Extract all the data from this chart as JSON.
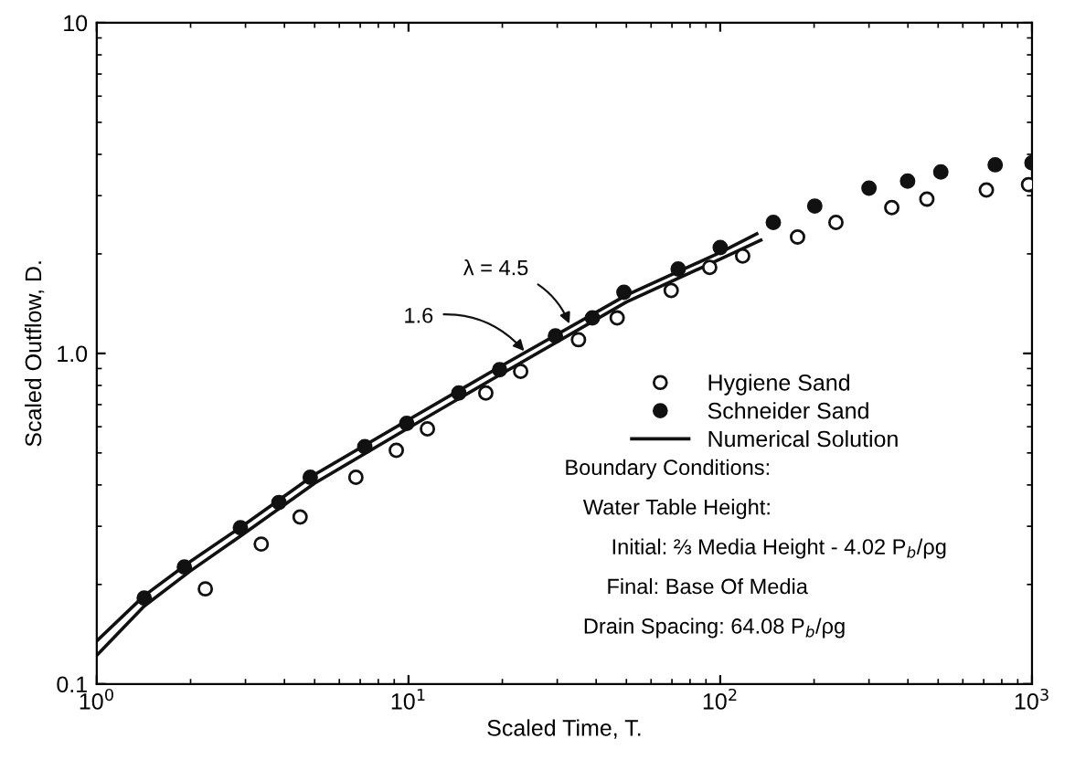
{
  "chart_data": {
    "type": "scatter",
    "xlabel": "Scaled Time, T.",
    "ylabel": "Scaled Outflow, D.",
    "log": "xy",
    "grid": false,
    "legend": "right",
    "xlim": [
      1,
      1000
    ],
    "xticks": [
      {
        "value": 1,
        "label": "10$^{0}$"
      },
      {
        "value": 10,
        "label": "10$^{1}$"
      },
      {
        "value": 100,
        "label": "10$^{2}$"
      },
      {
        "value": 1000,
        "label": "10$^{3}$"
      }
    ],
    "ylim": [
      0.1,
      10
    ],
    "yticks": [
      0.1,
      {
        "value": 1,
        "label": "1.0"
      },
      10
    ],
    "series": [
      {
        "name": "Hygiene Sand",
        "marker": "circle",
        "color": "#ffffff",
        "x": [
          2.23,
          3.37,
          4.49,
          6.78,
          9.14,
          11.5,
          17.7,
          22.9,
          35.1,
          46.7,
          69.6,
          92.5,
          118,
          177,
          235,
          355,
          460,
          714,
          975
        ],
        "values": [
          0.194,
          0.265,
          0.32,
          0.422,
          0.509,
          0.591,
          0.759,
          0.883,
          1.1,
          1.28,
          1.55,
          1.82,
          1.97,
          2.25,
          2.49,
          2.76,
          2.93,
          3.12,
          3.24
        ]
      },
      {
        "name": "Schneider Sand",
        "marker": "circle",
        "color": "#111111",
        "x": [
          1.42,
          1.91,
          2.89,
          3.84,
          4.84,
          7.24,
          9.87,
          14.5,
          19.6,
          29.6,
          38.9,
          49.1,
          73.3,
          100,
          148,
          201,
          300,
          399,
          510,
          762,
          1000
        ],
        "values": [
          0.182,
          0.226,
          0.297,
          0.354,
          0.422,
          0.522,
          0.614,
          0.759,
          0.893,
          1.13,
          1.28,
          1.53,
          1.8,
          2.09,
          2.49,
          2.79,
          3.16,
          3.32,
          3.54,
          3.72,
          3.77
        ]
      },
      {
        "name": "Numerical Solution",
        "type": "line",
        "marker": "none",
        "color": "#111111",
        "x": [
          1,
          1.42,
          2,
          3,
          5,
          10,
          20,
          50,
          100,
          131
        ],
        "values": [
          0.135,
          0.185,
          0.235,
          0.305,
          0.43,
          0.63,
          0.92,
          1.5,
          2.02,
          2.3
        ]
      },
      {
        "type": "line",
        "marker": "none",
        "color": "#111111",
        "x": [
          1,
          1.42,
          2,
          3,
          5,
          10,
          20,
          50,
          100,
          135
        ],
        "values": [
          0.122,
          0.172,
          0.22,
          0.287,
          0.405,
          0.595,
          0.87,
          1.43,
          1.93,
          2.2
        ]
      }
    ],
    "annotations": [
      {
        "text": "λ = 4.5",
        "x": 33.3,
        "y": 1.19
      },
      {
        "text": "1.6",
        "x": 24.1,
        "y": 0.99
      },
      "Boundary Conditions:",
      "Water Table Height:",
      "Initial: ⅔ Media Height - 4.02 P$_{b}$/ρg",
      "Final: Base Of Media",
      "Drain Spacing: 64.08 P$_{b}$/ρg"
    ]
  }
}
